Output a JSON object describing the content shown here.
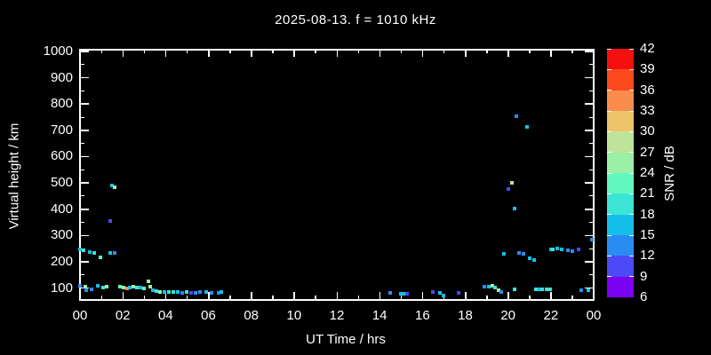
{
  "title": "2025-08-13. f = 1010 kHz",
  "colors": {
    "background": "#000000",
    "foreground": "#ffffff"
  },
  "chart_data": {
    "type": "scatter",
    "title": "2025-08-13. f = 1010 kHz",
    "xlabel": "UT Time / hrs",
    "ylabel": "Virtual height / km",
    "xlim": [
      0,
      24
    ],
    "ylim": [
      55,
      1010
    ],
    "grid": false,
    "x_major_tick_hours": [
      0,
      2,
      4,
      6,
      8,
      10,
      12,
      14,
      16,
      18,
      20,
      22,
      24
    ],
    "x_tick_labels": [
      "00",
      "02",
      "04",
      "06",
      "08",
      "10",
      "12",
      "14",
      "16",
      "18",
      "20",
      "22",
      "00"
    ],
    "x_minor_tick_hours": [
      1,
      3,
      5,
      7,
      9,
      11,
      13,
      15,
      17,
      19,
      21,
      23
    ],
    "y_major_ticks": [
      100,
      200,
      300,
      400,
      500,
      600,
      700,
      800,
      900,
      1000
    ],
    "y_tick_labels": [
      "100",
      "200",
      "300",
      "400",
      "500",
      "600",
      "700",
      "800",
      "900",
      "1000"
    ],
    "y_minor_ticks": [
      150,
      250,
      350,
      450,
      550,
      650,
      750,
      850,
      950
    ],
    "colorbar": {
      "label": "SNR / dB",
      "position": "right",
      "tick_values": [
        6,
        9,
        12,
        15,
        18,
        21,
        24,
        27,
        30,
        33,
        36,
        39,
        42
      ],
      "bin_edges": [
        6,
        9,
        12,
        15,
        18,
        21,
        24,
        27,
        30,
        33,
        36,
        39,
        42
      ],
      "bin_colors": [
        "#7B00EF",
        "#4C49F6",
        "#2A8CF2",
        "#14C0EA",
        "#3CE4D6",
        "#63F7C0",
        "#9BF0A8",
        "#BDE49A",
        "#EEC468",
        "#FA8C4C",
        "#FA4A1E",
        "#F50F0F"
      ]
    },
    "points_format": [
      "ut_hour",
      "virtual_height_km",
      "snr_db"
    ],
    "points": [
      [
        0.0,
        248,
        16.5
      ],
      [
        0.17,
        245,
        19.5
      ],
      [
        0.45,
        238,
        16.5
      ],
      [
        0.66,
        235,
        19.5
      ],
      [
        0.95,
        218,
        22.5
      ],
      [
        1.4,
        235,
        16.5
      ],
      [
        1.6,
        235,
        13.5
      ],
      [
        1.4,
        356,
        10.5
      ],
      [
        1.5,
        491,
        16.5
      ],
      [
        1.63,
        484,
        25.5
      ],
      [
        0.0,
        110,
        13.5
      ],
      [
        0.25,
        107,
        25.5
      ],
      [
        0.3,
        93,
        13.5
      ],
      [
        0.54,
        97,
        13.5
      ],
      [
        0.83,
        110,
        16.5
      ],
      [
        1.1,
        103,
        19.5
      ],
      [
        1.25,
        107,
        25.5
      ],
      [
        1.87,
        107,
        22.5
      ],
      [
        2.03,
        103,
        25.5
      ],
      [
        2.2,
        100,
        34.5
      ],
      [
        2.32,
        103,
        16.5
      ],
      [
        2.5,
        107,
        25.5
      ],
      [
        2.66,
        103,
        19.5
      ],
      [
        2.82,
        103,
        16.5
      ],
      [
        3.0,
        100,
        22.5
      ],
      [
        3.2,
        127,
        25.5
      ],
      [
        3.28,
        107,
        25.5
      ],
      [
        3.4,
        93,
        16.5
      ],
      [
        3.57,
        90,
        19.5
      ],
      [
        3.74,
        87,
        25.5
      ],
      [
        3.95,
        87,
        16.5
      ],
      [
        4.15,
        84,
        19.5
      ],
      [
        4.36,
        84,
        19.5
      ],
      [
        4.57,
        84,
        16.5
      ],
      [
        4.78,
        81,
        13.5
      ],
      [
        4.98,
        84,
        19.5
      ],
      [
        5.19,
        81,
        10.5
      ],
      [
        5.4,
        81,
        13.5
      ],
      [
        5.6,
        84,
        13.5
      ],
      [
        5.9,
        84,
        16.5
      ],
      [
        6.15,
        81,
        13.5
      ],
      [
        6.48,
        81,
        13.5
      ],
      [
        6.6,
        84,
        16.5
      ],
      [
        14.5,
        81,
        13.5
      ],
      [
        15.0,
        78,
        16.5
      ],
      [
        15.15,
        78,
        16.5
      ],
      [
        15.3,
        78,
        10.5
      ],
      [
        16.5,
        84,
        10.5
      ],
      [
        16.8,
        81,
        16.5
      ],
      [
        17.0,
        71,
        16.5
      ],
      [
        17.7,
        81,
        10.5
      ],
      [
        18.9,
        107,
        13.5
      ],
      [
        19.1,
        107,
        16.5
      ],
      [
        19.25,
        110,
        25.5
      ],
      [
        19.4,
        103,
        19.5
      ],
      [
        19.55,
        93,
        28.5
      ],
      [
        19.7,
        87,
        13.5
      ],
      [
        20.3,
        97,
        19.5
      ],
      [
        21.3,
        97,
        19.5
      ],
      [
        21.45,
        97,
        16.5
      ],
      [
        21.6,
        97,
        19.5
      ],
      [
        21.8,
        97,
        19.5
      ],
      [
        21.95,
        97,
        19.5
      ],
      [
        23.4,
        93,
        13.5
      ],
      [
        23.75,
        93,
        16.5
      ],
      [
        19.8,
        231,
        16.5
      ],
      [
        20.5,
        235,
        13.5
      ],
      [
        20.7,
        231,
        13.5
      ],
      [
        21.0,
        215,
        16.5
      ],
      [
        21.2,
        208,
        16.5
      ],
      [
        22.0,
        248,
        16.5
      ],
      [
        22.1,
        248,
        19.5
      ],
      [
        22.3,
        252,
        16.5
      ],
      [
        22.5,
        248,
        16.5
      ],
      [
        22.8,
        245,
        13.5
      ],
      [
        23.0,
        242,
        13.5
      ],
      [
        23.3,
        248,
        10.5
      ],
      [
        23.9,
        285,
        13.5
      ],
      [
        20.0,
        478,
        10.5
      ],
      [
        20.2,
        501,
        28.5
      ],
      [
        20.3,
        403,
        16.5
      ],
      [
        20.4,
        754,
        13.5
      ],
      [
        20.9,
        714,
        16.5
      ]
    ]
  }
}
